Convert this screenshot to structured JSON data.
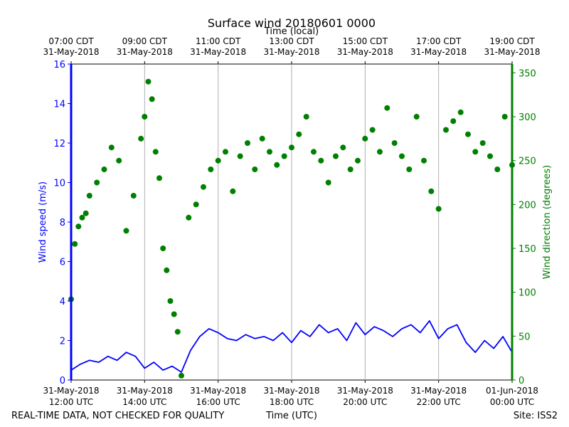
{
  "chart_data": {
    "type": "line+scatter",
    "title": "Surface wind 20180601 0000",
    "top_axis_label": "Time (local)",
    "bottom_axis_label": "Time (UTC)",
    "left_axis_label": "Wind speed (m/s)",
    "right_axis_label": "Wind direction (degrees)",
    "footer_left": "REAL-TIME DATA, NOT CHECKED FOR QUALITY",
    "footer_right": "Site: ISS2",
    "x_range_hours_utc": [
      0,
      12
    ],
    "y_left_range": [
      0,
      16
    ],
    "y_right_range": [
      0,
      360
    ],
    "y_left_ticks": [
      "0",
      "2",
      "4",
      "6",
      "8",
      "10",
      "12",
      "14",
      "16"
    ],
    "y_right_ticks": [
      "0",
      "50",
      "100",
      "150",
      "200",
      "250",
      "300",
      "350"
    ],
    "bottom_ticks": [
      {
        "line1": "31-May-2018",
        "line2": "12:00 UTC"
      },
      {
        "line1": "31-May-2018",
        "line2": "14:00 UTC"
      },
      {
        "line1": "31-May-2018",
        "line2": "16:00 UTC"
      },
      {
        "line1": "31-May-2018",
        "line2": "18:00 UTC"
      },
      {
        "line1": "31-May-2018",
        "line2": "20:00 UTC"
      },
      {
        "line1": "31-May-2018",
        "line2": "22:00 UTC"
      },
      {
        "line1": "01-Jun-2018",
        "line2": "00:00 UTC"
      }
    ],
    "top_ticks": [
      {
        "line1": "07:00 CDT",
        "line2": "31-May-2018"
      },
      {
        "line1": "09:00 CDT",
        "line2": "31-May-2018"
      },
      {
        "line1": "11:00 CDT",
        "line2": "31-May-2018"
      },
      {
        "line1": "13:00 CDT",
        "line2": "31-May-2018"
      },
      {
        "line1": "15:00 CDT",
        "line2": "31-May-2018"
      },
      {
        "line1": "17:00 CDT",
        "line2": "31-May-2018"
      },
      {
        "line1": "19:00 CDT",
        "line2": "31-May-2018"
      }
    ],
    "series": [
      {
        "name": "Wind speed",
        "axis": "left",
        "style": "line",
        "color": "#0000ff",
        "x_hours": [
          0,
          0.25,
          0.5,
          0.75,
          1.0,
          1.25,
          1.5,
          1.75,
          2.0,
          2.25,
          2.5,
          2.75,
          3.0,
          3.25,
          3.5,
          3.75,
          4.0,
          4.25,
          4.5,
          4.75,
          5.0,
          5.25,
          5.5,
          5.75,
          6.0,
          6.25,
          6.5,
          6.75,
          7.0,
          7.25,
          7.5,
          7.75,
          8.0,
          8.25,
          8.5,
          8.75,
          9.0,
          9.25,
          9.5,
          9.75,
          10.0,
          10.25,
          10.5,
          10.75,
          11.0,
          11.25,
          11.5,
          11.75,
          12.0
        ],
        "values": [
          0.5,
          0.8,
          1.0,
          0.9,
          1.2,
          1.0,
          1.4,
          1.2,
          0.6,
          0.9,
          0.5,
          0.7,
          0.4,
          1.5,
          2.2,
          2.6,
          2.4,
          2.1,
          2.0,
          2.3,
          2.1,
          2.2,
          2.0,
          2.4,
          1.9,
          2.5,
          2.2,
          2.8,
          2.4,
          2.6,
          2.0,
          2.9,
          2.3,
          2.7,
          2.5,
          2.2,
          2.6,
          2.8,
          2.4,
          3.0,
          2.1,
          2.6,
          2.8,
          1.9,
          1.4,
          2.0,
          1.6,
          2.2,
          1.4
        ]
      },
      {
        "name": "Wind direction",
        "axis": "right",
        "style": "scatter",
        "color": "#008000",
        "x_hours": [
          0.0,
          0.1,
          0.2,
          0.3,
          0.4,
          0.5,
          0.7,
          0.9,
          1.1,
          1.3,
          1.5,
          1.7,
          1.9,
          2.0,
          2.1,
          2.2,
          2.3,
          2.4,
          2.5,
          2.6,
          2.7,
          2.8,
          2.9,
          3.0,
          3.2,
          3.4,
          3.6,
          3.8,
          4.0,
          4.2,
          4.4,
          4.6,
          4.8,
          5.0,
          5.2,
          5.4,
          5.6,
          5.8,
          6.0,
          6.2,
          6.4,
          6.6,
          6.8,
          7.0,
          7.2,
          7.4,
          7.6,
          7.8,
          8.0,
          8.2,
          8.4,
          8.6,
          8.8,
          9.0,
          9.2,
          9.4,
          9.6,
          9.8,
          10.0,
          10.2,
          10.4,
          10.6,
          10.8,
          11.0,
          11.2,
          11.4,
          11.6,
          11.8,
          12.0
        ],
        "values": [
          92,
          155,
          175,
          185,
          190,
          210,
          225,
          240,
          265,
          250,
          170,
          210,
          275,
          300,
          340,
          320,
          260,
          230,
          150,
          125,
          90,
          75,
          55,
          5,
          185,
          200,
          220,
          240,
          250,
          260,
          215,
          255,
          270,
          240,
          275,
          260,
          245,
          255,
          265,
          280,
          300,
          260,
          250,
          225,
          255,
          265,
          240,
          250,
          275,
          285,
          260,
          310,
          270,
          255,
          240,
          300,
          250,
          215,
          195,
          285,
          295,
          305,
          280,
          260,
          270,
          255,
          240,
          300,
          245
        ]
      }
    ]
  }
}
